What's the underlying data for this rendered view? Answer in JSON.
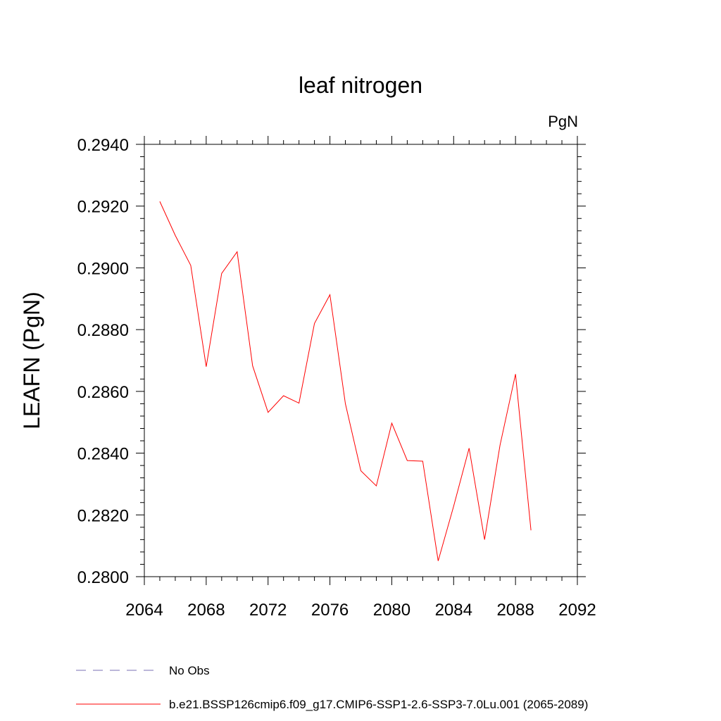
{
  "chart_data": {
    "type": "line",
    "title": "leaf nitrogen",
    "units_label": "PgN",
    "ylabel": "LEAFN  (PgN)",
    "xlabel": "",
    "xlim": [
      2064,
      2092
    ],
    "ylim": [
      0.28,
      0.294
    ],
    "xticks": [
      "2064",
      "2068",
      "2072",
      "2076",
      "2080",
      "2084",
      "2088",
      "2092"
    ],
    "yticks": [
      "0.2800",
      "0.2820",
      "0.2840",
      "0.2860",
      "0.2880",
      "0.2900",
      "0.2920",
      "0.2940"
    ],
    "x": [
      2065,
      2066,
      2067,
      2068,
      2069,
      2070,
      2071,
      2072,
      2073,
      2074,
      2075,
      2076,
      2077,
      2078,
      2079,
      2080,
      2081,
      2082,
      2083,
      2084,
      2085,
      2086,
      2087,
      2088,
      2089
    ],
    "series": [
      {
        "name": "b.e21.BSSP126cmip6.f09_g17.CMIP6-SSP1-2.6-SSP3-7.0Lu.001 (2065-2089)",
        "color": "#ff0000",
        "values": [
          0.29215,
          0.29105,
          0.29008,
          0.2868,
          0.28982,
          0.29052,
          0.28683,
          0.28532,
          0.28586,
          0.28562,
          0.2882,
          0.28913,
          0.2856,
          0.28343,
          0.28294,
          0.28497,
          0.28376,
          0.28374,
          0.28051,
          0.28228,
          0.28416,
          0.2812,
          0.28426,
          0.28656,
          0.2815
        ]
      }
    ],
    "legend": [
      {
        "label": "No Obs",
        "color": "#7a6fb5",
        "style": "dashed"
      },
      {
        "label": "b.e21.BSSP126cmip6.f09_g17.CMIP6-SSP1-2.6-SSP3-7.0Lu.001 (2065-2089)",
        "color": "#ff0000",
        "style": "solid"
      }
    ],
    "legend_position": "bottom",
    "grid": false
  }
}
